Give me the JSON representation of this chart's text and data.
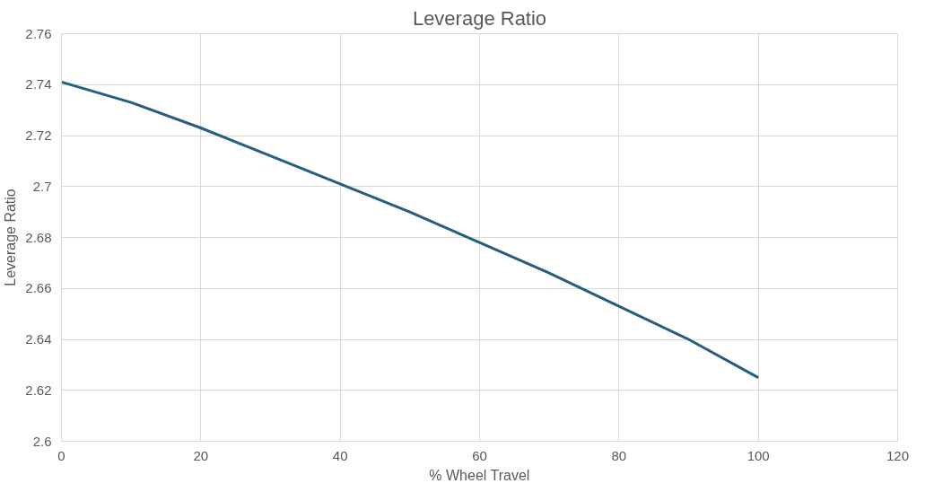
{
  "chart_data": {
    "type": "line",
    "title": "Leverage Ratio",
    "xlabel": "% Wheel Travel",
    "ylabel": "Leverage Ratio",
    "x": [
      0,
      10,
      20,
      30,
      40,
      50,
      60,
      70,
      80,
      90,
      100
    ],
    "series": [
      {
        "color": "#255e7e",
        "values": [
          2.741,
          2.733,
          2.723,
          2.712,
          2.701,
          2.69,
          2.678,
          2.666,
          2.653,
          2.64,
          2.625
        ]
      }
    ],
    "xlim": [
      0,
      120
    ],
    "xticks": [
      0,
      20,
      40,
      60,
      80,
      100,
      120
    ],
    "ylim": [
      2.6,
      2.76
    ],
    "yticks": [
      {
        "value": 2.6,
        "label": "2.6"
      },
      2.62,
      2.64,
      2.66,
      2.68,
      {
        "value": 2.7,
        "label": "2.7"
      },
      2.72,
      2.74,
      2.76
    ],
    "grid": true,
    "marker": "none",
    "line_style": "solid"
  }
}
